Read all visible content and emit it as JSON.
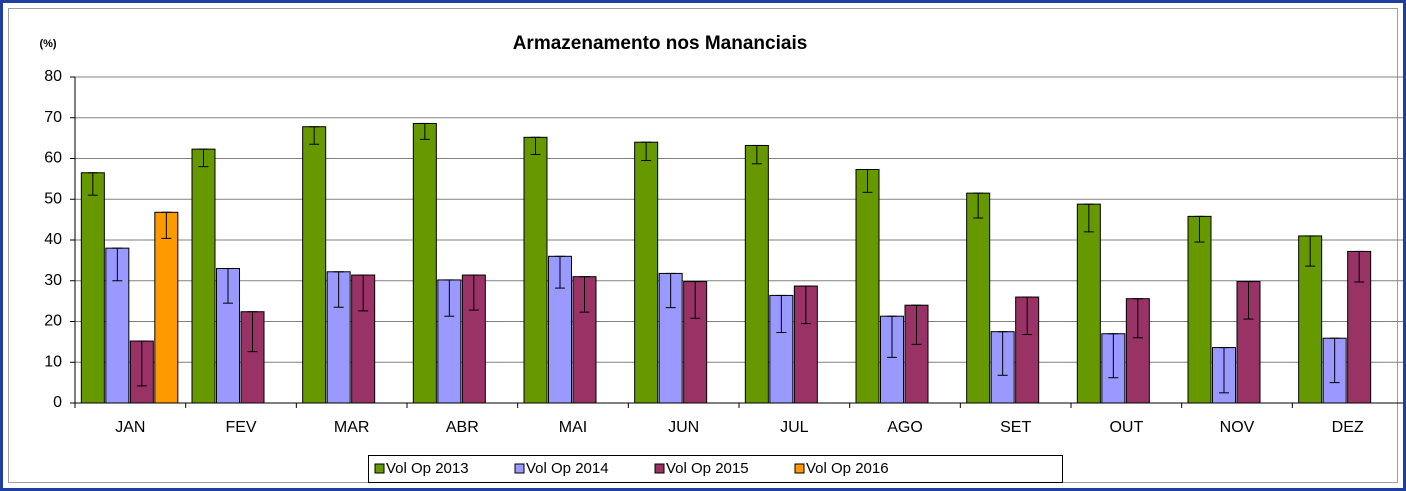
{
  "chart_data": {
    "type": "bar",
    "title": "Armazenamento nos Mananciais",
    "y_unit": "(%)",
    "categories": [
      "JAN",
      "FEV",
      "MAR",
      "ABR",
      "MAI",
      "JUN",
      "JUL",
      "AGO",
      "SET",
      "OUT",
      "NOV",
      "DEZ"
    ],
    "series": [
      {
        "name": "Vol Op 2013",
        "color": "#669900",
        "values": [
          56.5,
          62.3,
          67.8,
          68.6,
          65.2,
          64,
          63.2,
          57.3,
          51.5,
          48.8,
          45.8,
          41
        ],
        "errors": [
          5.5,
          4.3,
          4.3,
          3.9,
          4.2,
          4.5,
          4.5,
          5.6,
          6.1,
          6.8,
          6.3,
          7.4
        ]
      },
      {
        "name": "Vol Op 2014",
        "color": "#9999ff",
        "values": [
          38,
          33,
          32.2,
          30.2,
          36,
          31.8,
          26.4,
          21.3,
          17.5,
          17,
          13.6,
          15.9
        ],
        "errors": [
          8,
          8.5,
          8.7,
          8.9,
          7.8,
          8.4,
          9.1,
          10.1,
          10.7,
          10.8,
          11.1,
          10.9
        ]
      },
      {
        "name": "Vol Op 2015",
        "color": "#993366",
        "values": [
          15.2,
          22.4,
          31.4,
          31.4,
          31,
          29.8,
          28.7,
          24,
          26,
          25.6,
          29.8,
          37.2
        ],
        "errors": [
          11,
          9.8,
          8.8,
          8.6,
          8.7,
          9,
          9.2,
          9.6,
          9.2,
          9.6,
          9.2,
          7.5
        ]
      },
      {
        "name": "Vol Op 2016",
        "color": "#ff9900",
        "values": [
          46.8,
          null,
          null,
          null,
          null,
          null,
          null,
          null,
          null,
          null,
          null,
          null
        ],
        "errors": [
          6.4,
          null,
          null,
          null,
          null,
          null,
          null,
          null,
          null,
          null,
          null,
          null
        ]
      }
    ],
    "ylim": [
      0,
      80
    ],
    "yticks": [
      0,
      10,
      20,
      30,
      40,
      50,
      60,
      70,
      80
    ],
    "grid": true,
    "legend": "bottom"
  }
}
